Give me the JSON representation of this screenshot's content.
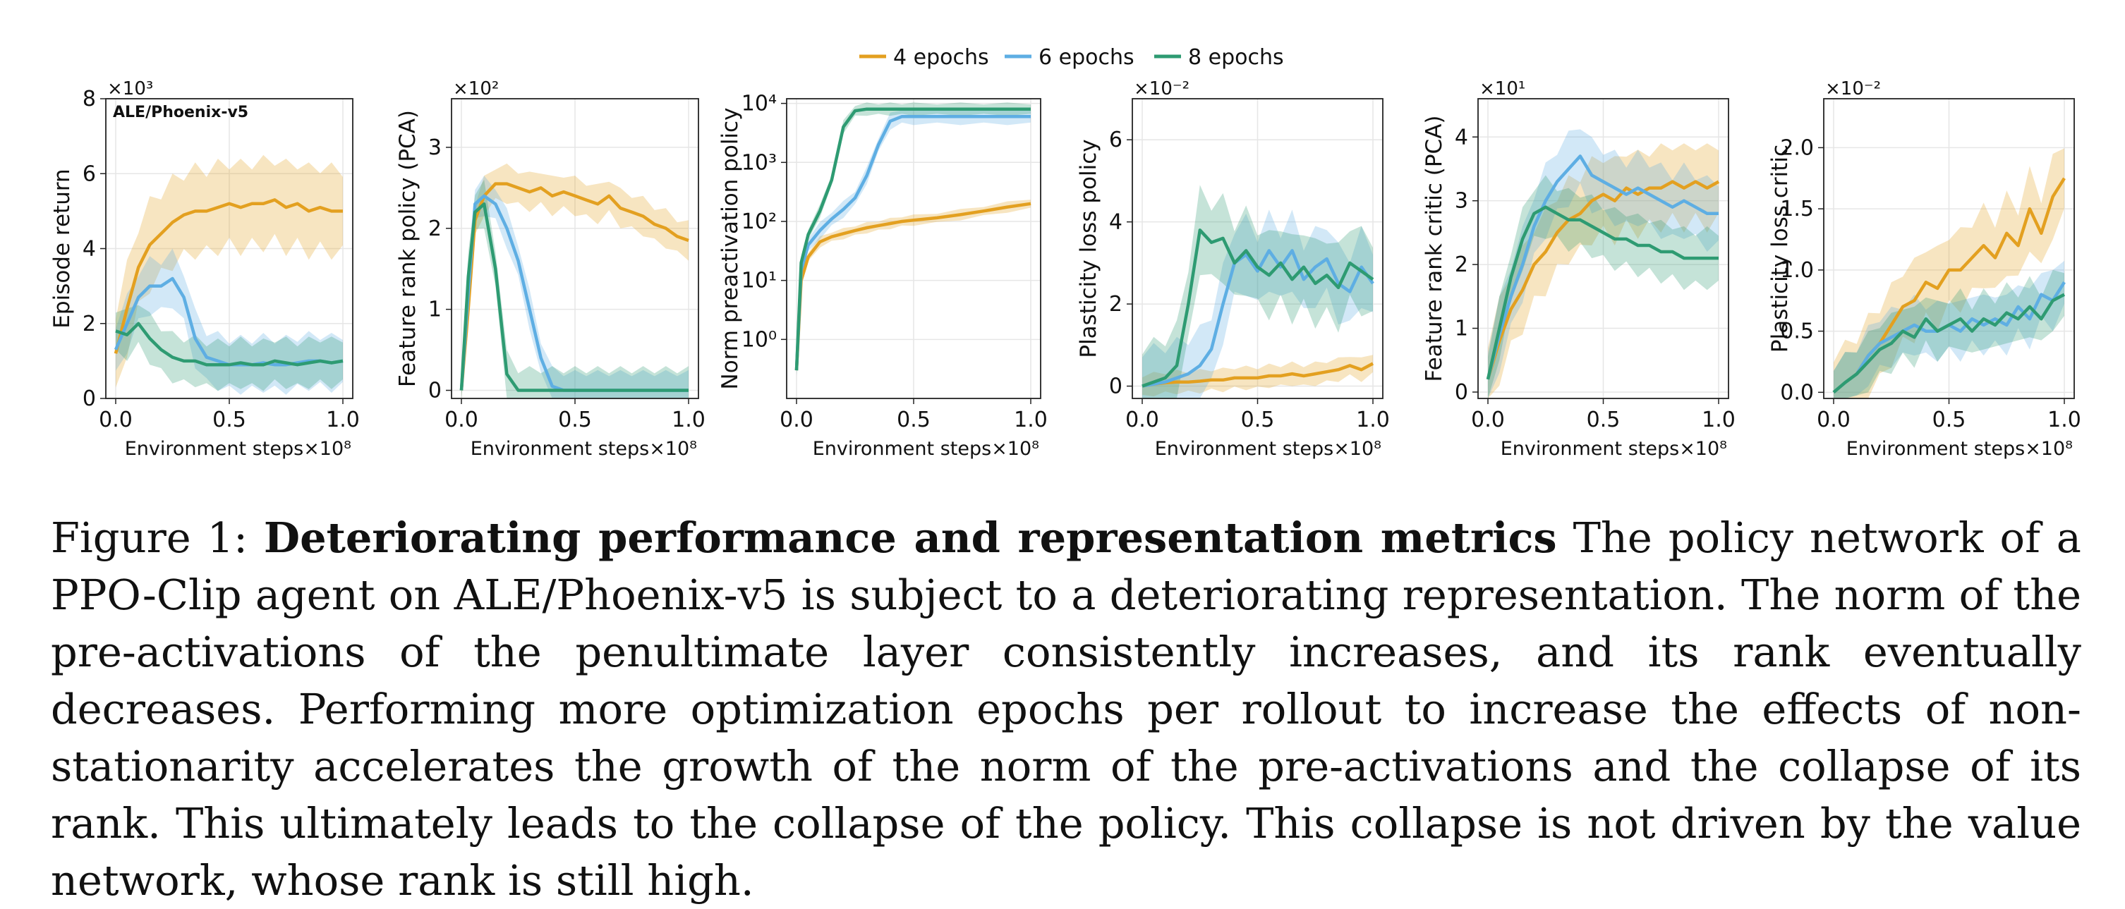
{
  "legend": [
    {
      "label": "4 epochs",
      "color": "#E3A020"
    },
    {
      "label": "6 epochs",
      "color": "#5EAEE3"
    },
    {
      "label": "8 epochs",
      "color": "#2E9B72"
    }
  ],
  "chart_data": [
    {
      "type": "line",
      "panel_title": "ALE/Phoenix-v5",
      "ylabel": "Episode return",
      "xlabel": "Environment steps",
      "xmultiplier": "×10⁸",
      "ymultiplier": "×10³",
      "xlim": [
        0,
        1.0
      ],
      "ylim": [
        0,
        8
      ],
      "xticks": [
        "0.0",
        "0.5",
        "1.0"
      ],
      "yticks": [
        "0",
        "2",
        "4",
        "6",
        "8"
      ],
      "x": [
        0,
        0.05,
        0.1,
        0.15,
        0.2,
        0.25,
        0.3,
        0.35,
        0.4,
        0.45,
        0.5,
        0.55,
        0.6,
        0.65,
        0.7,
        0.75,
        0.8,
        0.85,
        0.9,
        0.95,
        1.0
      ],
      "series": [
        {
          "name": "4 epochs",
          "values": [
            1.2,
            2.4,
            3.5,
            4.1,
            4.4,
            4.7,
            4.9,
            5.0,
            5.0,
            5.1,
            5.2,
            5.1,
            5.2,
            5.2,
            5.3,
            5.1,
            5.2,
            5.0,
            5.1,
            5.0,
            5.0
          ],
          "band": 1.3
        },
        {
          "name": "6 epochs",
          "values": [
            1.3,
            2.0,
            2.7,
            3.0,
            3.0,
            3.2,
            2.7,
            1.6,
            1.1,
            1.0,
            0.9,
            0.9,
            0.9,
            0.95,
            0.9,
            0.9,
            0.95,
            1.0,
            1.0,
            0.95,
            1.0
          ],
          "band": 0.8
        },
        {
          "name": "8 epochs",
          "values": [
            1.8,
            1.7,
            2.0,
            1.6,
            1.3,
            1.1,
            1.0,
            1.0,
            0.9,
            0.9,
            0.9,
            0.95,
            0.9,
            0.9,
            1.0,
            0.95,
            0.9,
            0.95,
            1.0,
            0.95,
            1.0
          ],
          "band": 0.7
        }
      ]
    },
    {
      "type": "line",
      "ylabel": "Feature rank policy (PCA)",
      "xlabel": "Environment steps",
      "xmultiplier": "×10⁸",
      "ymultiplier": "×10²",
      "xlim": [
        0,
        1.0
      ],
      "ylim": [
        -0.1,
        3.6
      ],
      "xticks": [
        "0.0",
        "0.5",
        "1.0"
      ],
      "yticks": [
        "0",
        "1",
        "2",
        "3"
      ],
      "x": [
        0,
        0.03,
        0.06,
        0.1,
        0.15,
        0.2,
        0.25,
        0.3,
        0.35,
        0.4,
        0.45,
        0.5,
        0.55,
        0.6,
        0.65,
        0.7,
        0.75,
        0.8,
        0.85,
        0.9,
        0.95,
        1.0
      ],
      "series": [
        {
          "name": "4 epochs",
          "values": [
            0,
            1.0,
            2.1,
            2.4,
            2.55,
            2.55,
            2.5,
            2.45,
            2.5,
            2.4,
            2.45,
            2.4,
            2.35,
            2.3,
            2.4,
            2.25,
            2.2,
            2.15,
            2.05,
            2.0,
            1.9,
            1.85
          ],
          "band": 0.25
        },
        {
          "name": "6 epochs",
          "values": [
            0,
            1.2,
            2.3,
            2.4,
            2.3,
            2.0,
            1.6,
            1.0,
            0.4,
            0.05,
            0,
            0,
            0,
            0,
            0,
            0,
            0,
            0,
            0,
            0,
            0,
            0
          ],
          "band": 0.25
        },
        {
          "name": "8 epochs",
          "values": [
            0,
            1.4,
            2.2,
            2.3,
            1.5,
            0.2,
            0,
            0,
            0,
            0,
            0,
            0,
            0,
            0,
            0,
            0,
            0,
            0,
            0,
            0,
            0,
            0
          ],
          "band": 0.3
        }
      ]
    },
    {
      "type": "line",
      "scale": "log",
      "ylabel": "Norm preactivation policy",
      "xlabel": "Environment steps",
      "xmultiplier": "×10⁸",
      "xlim": [
        0,
        1.0
      ],
      "ylim": [
        0.1,
        12000
      ],
      "xticks": [
        "0.0",
        "0.5",
        "1.0"
      ],
      "yticks": [
        "10⁰",
        "10¹",
        "10²",
        "10³",
        "10⁴"
      ],
      "ytick_values": [
        1,
        10,
        100,
        1000,
        10000
      ],
      "x": [
        0,
        0.02,
        0.05,
        0.1,
        0.15,
        0.2,
        0.25,
        0.3,
        0.35,
        0.4,
        0.45,
        0.5,
        0.6,
        0.7,
        0.8,
        0.9,
        1.0
      ],
      "series": [
        {
          "name": "4 epochs",
          "values": [
            0.3,
            10,
            25,
            45,
            55,
            62,
            70,
            78,
            85,
            92,
            100,
            105,
            115,
            130,
            150,
            175,
            200
          ],
          "band": 1.25
        },
        {
          "name": "6 epochs",
          "values": [
            0.3,
            15,
            40,
            70,
            110,
            160,
            250,
            600,
            2000,
            5000,
            6000,
            6000,
            6000,
            6000,
            6000,
            6000,
            6000
          ],
          "band": 1.4
        },
        {
          "name": "8 epochs",
          "values": [
            0.3,
            20,
            60,
            150,
            500,
            4000,
            7500,
            8000,
            8000,
            8000,
            8000,
            8000,
            8000,
            8000,
            8000,
            8000,
            8000
          ],
          "band": 1.3
        }
      ]
    },
    {
      "type": "line",
      "ylabel": "Plasticity loss policy",
      "xlabel": "Environment steps",
      "xmultiplier": "×10⁸",
      "ymultiplier": "×10⁻²",
      "xlim": [
        0,
        1.0
      ],
      "ylim": [
        -0.3,
        7.0
      ],
      "xticks": [
        "0.0",
        "0.5",
        "1.0"
      ],
      "yticks": [
        "0",
        "2",
        "4",
        "6"
      ],
      "x": [
        0,
        0.05,
        0.1,
        0.15,
        0.2,
        0.25,
        0.3,
        0.35,
        0.4,
        0.45,
        0.5,
        0.55,
        0.6,
        0.65,
        0.7,
        0.75,
        0.8,
        0.85,
        0.9,
        0.95,
        1.0
      ],
      "series": [
        {
          "name": "4 epochs",
          "values": [
            0,
            0.05,
            0.08,
            0.1,
            0.1,
            0.12,
            0.15,
            0.15,
            0.2,
            0.2,
            0.2,
            0.25,
            0.25,
            0.3,
            0.25,
            0.3,
            0.35,
            0.4,
            0.5,
            0.4,
            0.55
          ],
          "band": 0.3
        },
        {
          "name": "6 epochs",
          "values": [
            0,
            0.05,
            0.1,
            0.2,
            0.3,
            0.5,
            0.9,
            2.0,
            3.0,
            3.2,
            2.8,
            3.3,
            2.9,
            3.3,
            2.6,
            2.9,
            3.1,
            2.5,
            2.3,
            2.9,
            2.5
          ],
          "band": 1.0
        },
        {
          "name": "8 epochs",
          "values": [
            0,
            0.1,
            0.2,
            0.5,
            2.0,
            3.8,
            3.5,
            3.6,
            3.0,
            3.3,
            2.9,
            2.7,
            3.0,
            2.6,
            2.9,
            2.5,
            2.7,
            2.4,
            3.0,
            2.8,
            2.6
          ],
          "band": 1.1
        }
      ]
    },
    {
      "type": "line",
      "ylabel": "Feature rank critic (PCA)",
      "xlabel": "Environment steps",
      "xmultiplier": "×10⁸",
      "ymultiplier": "×10¹",
      "xlim": [
        0,
        1.0
      ],
      "ylim": [
        -0.1,
        4.6
      ],
      "xticks": [
        "0.0",
        "0.5",
        "1.0"
      ],
      "yticks": [
        "0",
        "1",
        "2",
        "3",
        "4"
      ],
      "x": [
        0,
        0.05,
        0.1,
        0.15,
        0.2,
        0.25,
        0.3,
        0.35,
        0.4,
        0.45,
        0.5,
        0.55,
        0.6,
        0.65,
        0.7,
        0.75,
        0.8,
        0.85,
        0.9,
        0.95,
        1.0
      ],
      "series": [
        {
          "name": "4 epochs",
          "values": [
            0.2,
            0.8,
            1.3,
            1.6,
            2.0,
            2.2,
            2.5,
            2.7,
            2.8,
            3.0,
            3.1,
            3.0,
            3.2,
            3.1,
            3.2,
            3.2,
            3.3,
            3.2,
            3.3,
            3.2,
            3.3
          ],
          "band": 0.7
        },
        {
          "name": "6 epochs",
          "values": [
            0.2,
            0.9,
            1.5,
            2.0,
            2.6,
            3.0,
            3.3,
            3.5,
            3.7,
            3.4,
            3.3,
            3.2,
            3.1,
            3.2,
            3.1,
            3.0,
            2.9,
            3.0,
            2.9,
            2.8,
            2.8
          ],
          "band": 0.6
        },
        {
          "name": "8 epochs",
          "values": [
            0.2,
            1.0,
            1.8,
            2.4,
            2.8,
            2.9,
            2.8,
            2.7,
            2.7,
            2.6,
            2.5,
            2.4,
            2.4,
            2.3,
            2.3,
            2.2,
            2.2,
            2.1,
            2.1,
            2.1,
            2.1
          ],
          "band": 0.5
        }
      ]
    },
    {
      "type": "line",
      "ylabel": "Plasticity loss critic",
      "xlabel": "Environment steps",
      "xmultiplier": "×10⁸",
      "ymultiplier": "×10⁻²",
      "xlim": [
        0,
        1.0
      ],
      "ylim": [
        -0.05,
        2.4
      ],
      "xticks": [
        "0.0",
        "0.5",
        "1.0"
      ],
      "yticks": [
        "0.0",
        "0.5",
        "1.0",
        "1.5",
        "2.0"
      ],
      "x": [
        0,
        0.05,
        0.1,
        0.15,
        0.2,
        0.25,
        0.3,
        0.35,
        0.4,
        0.45,
        0.5,
        0.55,
        0.6,
        0.65,
        0.7,
        0.75,
        0.8,
        0.85,
        0.9,
        0.95,
        1.0
      ],
      "series": [
        {
          "name": "4 epochs",
          "values": [
            0,
            0.08,
            0.15,
            0.3,
            0.4,
            0.55,
            0.7,
            0.75,
            0.9,
            0.85,
            1.0,
            1.0,
            1.1,
            1.2,
            1.1,
            1.3,
            1.2,
            1.5,
            1.3,
            1.6,
            1.75
          ],
          "band": 0.35
        },
        {
          "name": "6 epochs",
          "values": [
            0,
            0.08,
            0.15,
            0.3,
            0.4,
            0.45,
            0.5,
            0.55,
            0.5,
            0.5,
            0.55,
            0.5,
            0.6,
            0.55,
            0.6,
            0.55,
            0.7,
            0.6,
            0.8,
            0.75,
            0.9
          ],
          "band": 0.25
        },
        {
          "name": "8 epochs",
          "values": [
            0,
            0.08,
            0.15,
            0.25,
            0.35,
            0.4,
            0.5,
            0.45,
            0.6,
            0.5,
            0.55,
            0.6,
            0.5,
            0.6,
            0.55,
            0.65,
            0.6,
            0.7,
            0.6,
            0.75,
            0.8
          ],
          "band": 0.25
        }
      ]
    }
  ],
  "caption": {
    "label": "Figure 1:",
    "title": "Deteriorating performance and representation metrics",
    "text": "The policy network of a PPO-Clip agent on ALE/Phoenix-v5 is subject to a deteriorating representation.  The norm of the pre-activations of the penultimate layer consistently increases, and its rank eventually decreases. Performing more optimization epochs per rollout to increase the effects of non-stationarity accelerates the growth of the norm of the pre-activations and the collapse of its rank. This ultimately leads to the collapse of the policy. This collapse is not driven by the value network, whose rank is still high."
  }
}
